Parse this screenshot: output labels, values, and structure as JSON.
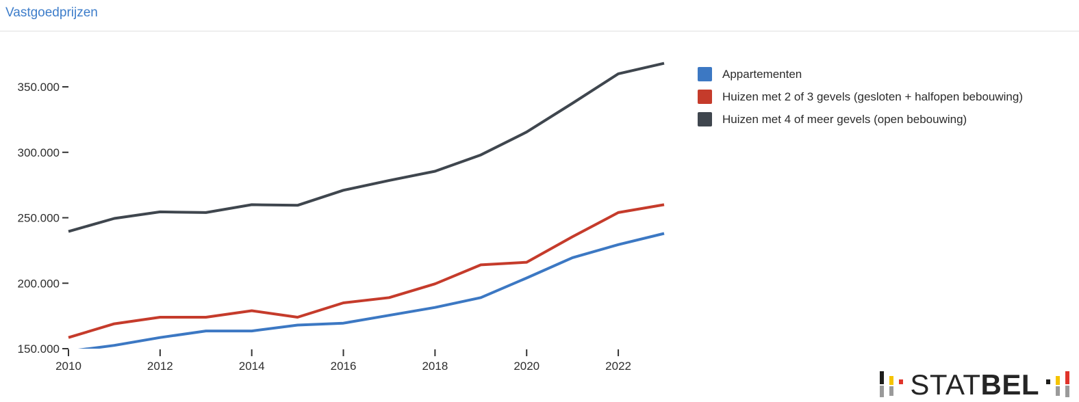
{
  "header": {
    "title": "Vastgoedprijzen"
  },
  "legend": {
    "items": [
      {
        "label": "Appartementen",
        "color": "#3c78c3"
      },
      {
        "label": "Huizen met 2 of 3 gevels (gesloten + halfopen bebouwing)",
        "color": "#c53b2b"
      },
      {
        "label": "Huizen met 4 of meer gevels (open bebouwing)",
        "color": "#3f464e"
      }
    ]
  },
  "chart_data": {
    "type": "line",
    "title": "Vastgoedprijzen",
    "x": [
      2010,
      2011,
      2012,
      2013,
      2014,
      2015,
      2016,
      2017,
      2018,
      2019,
      2020,
      2021,
      2022,
      2023
    ],
    "series": [
      {
        "name": "Appartementen",
        "color": "#3c78c3",
        "values": [
          148000,
          152500,
          158500,
          163500,
          163500,
          168000,
          169500,
          175500,
          181500,
          189000,
          204000,
          219500,
          229500,
          238000
        ]
      },
      {
        "name": "Huizen met 2 of 3 gevels (gesloten + halfopen bebouwing)",
        "color": "#c53b2b",
        "values": [
          158500,
          169000,
          174000,
          174000,
          179000,
          174000,
          185000,
          189000,
          199500,
          214000,
          216000,
          235500,
          254000,
          260000
        ]
      },
      {
        "name": "Huizen met 4 of meer gevels (open bebouwing)",
        "color": "#3f464e",
        "values": [
          239500,
          249500,
          254500,
          254000,
          260000,
          259500,
          271000,
          278500,
          285500,
          298000,
          315500,
          337500,
          360000,
          368000
        ]
      }
    ],
    "ylim": [
      150000,
      385000
    ],
    "yticks": [
      150000,
      200000,
      250000,
      300000,
      350000
    ],
    "ytick_labels": [
      "150.000",
      "200.000",
      "250.000",
      "300.000",
      "350.000"
    ],
    "xticks": [
      2010,
      2012,
      2014,
      2016,
      2018,
      2020,
      2022
    ],
    "grid": "off",
    "legend_position": "right"
  },
  "logo": {
    "text_regular": "STAT",
    "text_bold": "BEL",
    "colors": {
      "black": "#1d1d1b",
      "yellow": "#f5c400",
      "red": "#e0342b",
      "gray": "#9a9a9a"
    }
  }
}
